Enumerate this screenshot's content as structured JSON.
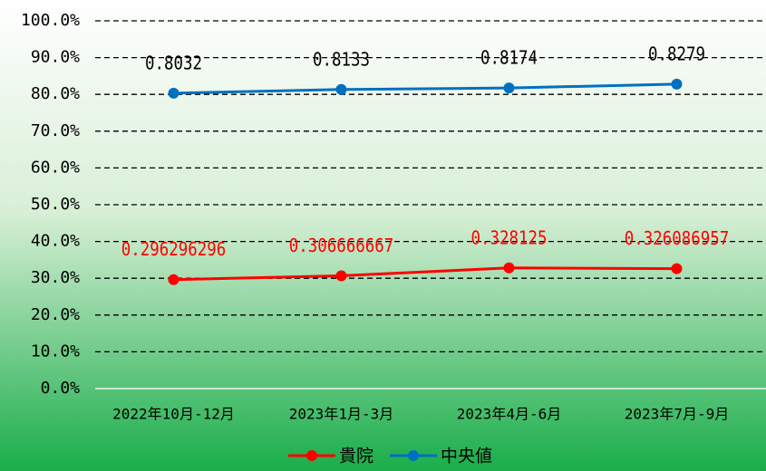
{
  "chart_data": {
    "type": "line",
    "categories": [
      "2022年10月-12月",
      "2023年1月-3月",
      "2023年4月-6月",
      "2023年7月-9月"
    ],
    "series": [
      {
        "name": "貴院",
        "color": "#ff0000",
        "label_color": "#ff0000",
        "values": [
          0.296296296,
          0.306666667,
          0.328125,
          0.326086957
        ]
      },
      {
        "name": "中央値",
        "color": "#0070c0",
        "label_color": "#000000",
        "values": [
          0.8032,
          0.8133,
          0.8174,
          0.8279
        ]
      }
    ],
    "ylim": [
      0,
      1
    ],
    "yticks": [
      {
        "value": 0,
        "label": "0.0%"
      },
      {
        "value": 0.1,
        "label": "10.0%"
      },
      {
        "value": 0.2,
        "label": "20.0%"
      },
      {
        "value": 0.3,
        "label": "30.0%"
      },
      {
        "value": 0.4,
        "label": "40.0%"
      },
      {
        "value": 0.5,
        "label": "50.0%"
      },
      {
        "value": 0.6,
        "label": "60.0%"
      },
      {
        "value": 0.7,
        "label": "70.0%"
      },
      {
        "value": 0.8,
        "label": "80.0%"
      },
      {
        "value": 0.9,
        "label": "90.0%"
      },
      {
        "value": 1,
        "label": "100.0%"
      }
    ],
    "grid": true,
    "legend": "bottom"
  }
}
